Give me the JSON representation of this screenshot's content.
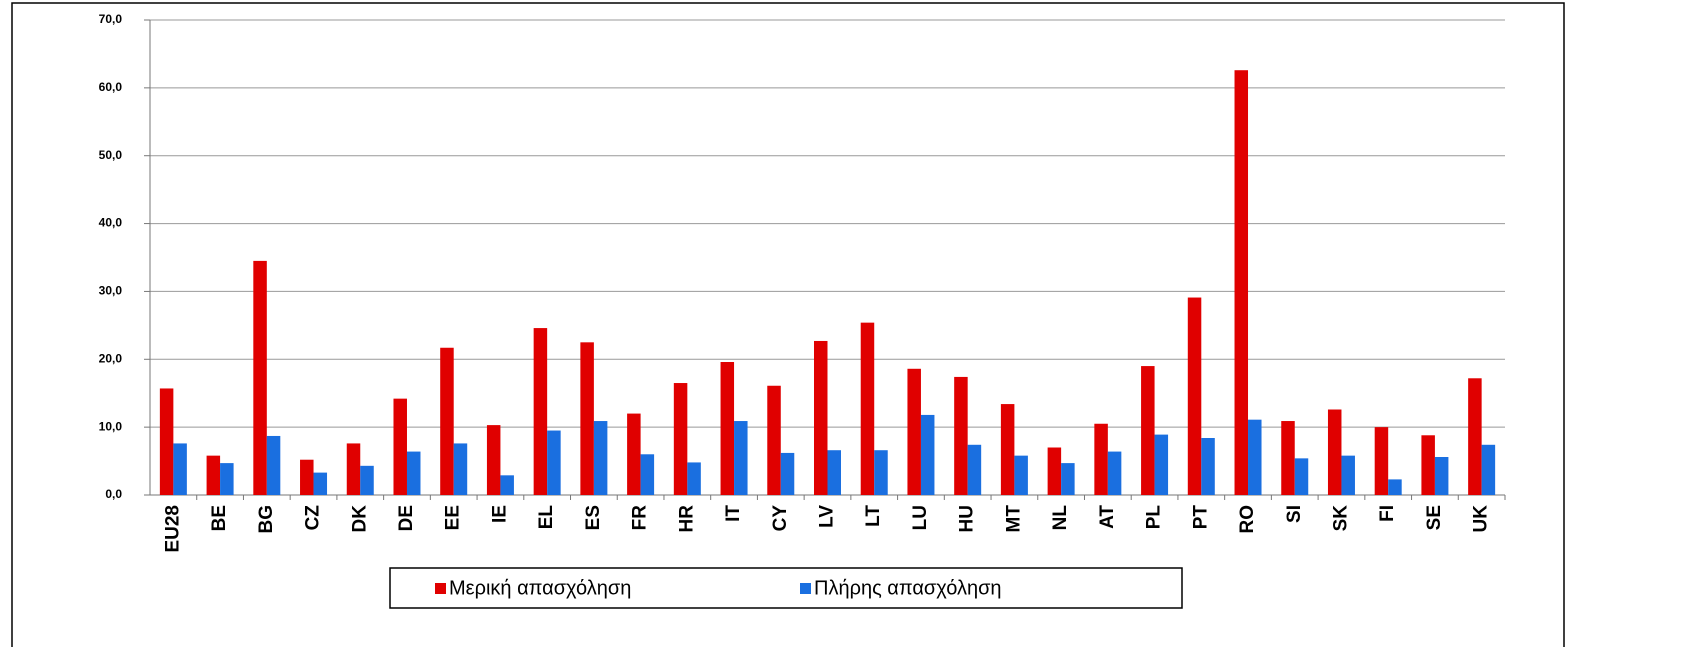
{
  "chart_data": {
    "type": "bar",
    "categories": [
      "EU28",
      "BE",
      "BG",
      "CZ",
      "DK",
      "DE",
      "EE",
      "IE",
      "EL",
      "ES",
      "FR",
      "HR",
      "IT",
      "CY",
      "LV",
      "LT",
      "LU",
      "HU",
      "MT",
      "NL",
      "AT",
      "PL",
      "PT",
      "RO",
      "SI",
      "SK",
      "FI",
      "SE",
      "UK"
    ],
    "series": [
      {
        "name": "Μερική απασχόληση",
        "color": "#e00000",
        "values": [
          15.7,
          5.8,
          34.5,
          5.2,
          7.6,
          14.2,
          21.7,
          10.3,
          24.6,
          22.5,
          12.0,
          16.5,
          19.6,
          16.1,
          22.7,
          25.4,
          18.6,
          17.4,
          13.4,
          7.0,
          10.5,
          19.0,
          29.1,
          62.6,
          10.9,
          12.6,
          10.0,
          8.8,
          17.2
        ]
      },
      {
        "name": "Πλήρης απασχόληση",
        "color": "#1a6fe0",
        "values": [
          7.6,
          4.7,
          8.7,
          3.3,
          4.3,
          6.4,
          7.6,
          2.9,
          9.5,
          10.9,
          6.0,
          4.8,
          10.9,
          6.2,
          6.6,
          6.6,
          11.8,
          7.4,
          5.8,
          4.7,
          6.4,
          8.9,
          8.4,
          11.1,
          5.4,
          5.8,
          2.3,
          5.6,
          7.4
        ]
      }
    ],
    "ylim": [
      0,
      70
    ],
    "yticks": [
      {
        "value": 0,
        "label": "0,0"
      },
      {
        "value": 10,
        "label": "10,0"
      },
      {
        "value": 20,
        "label": "20,0"
      },
      {
        "value": 30,
        "label": "30,0"
      },
      {
        "value": 40,
        "label": "40,0"
      },
      {
        "value": 50,
        "label": "50,0"
      },
      {
        "value": 60,
        "label": "60,0"
      },
      {
        "value": 70,
        "label": "70,0"
      }
    ],
    "grid": true,
    "legend": "bottom"
  }
}
